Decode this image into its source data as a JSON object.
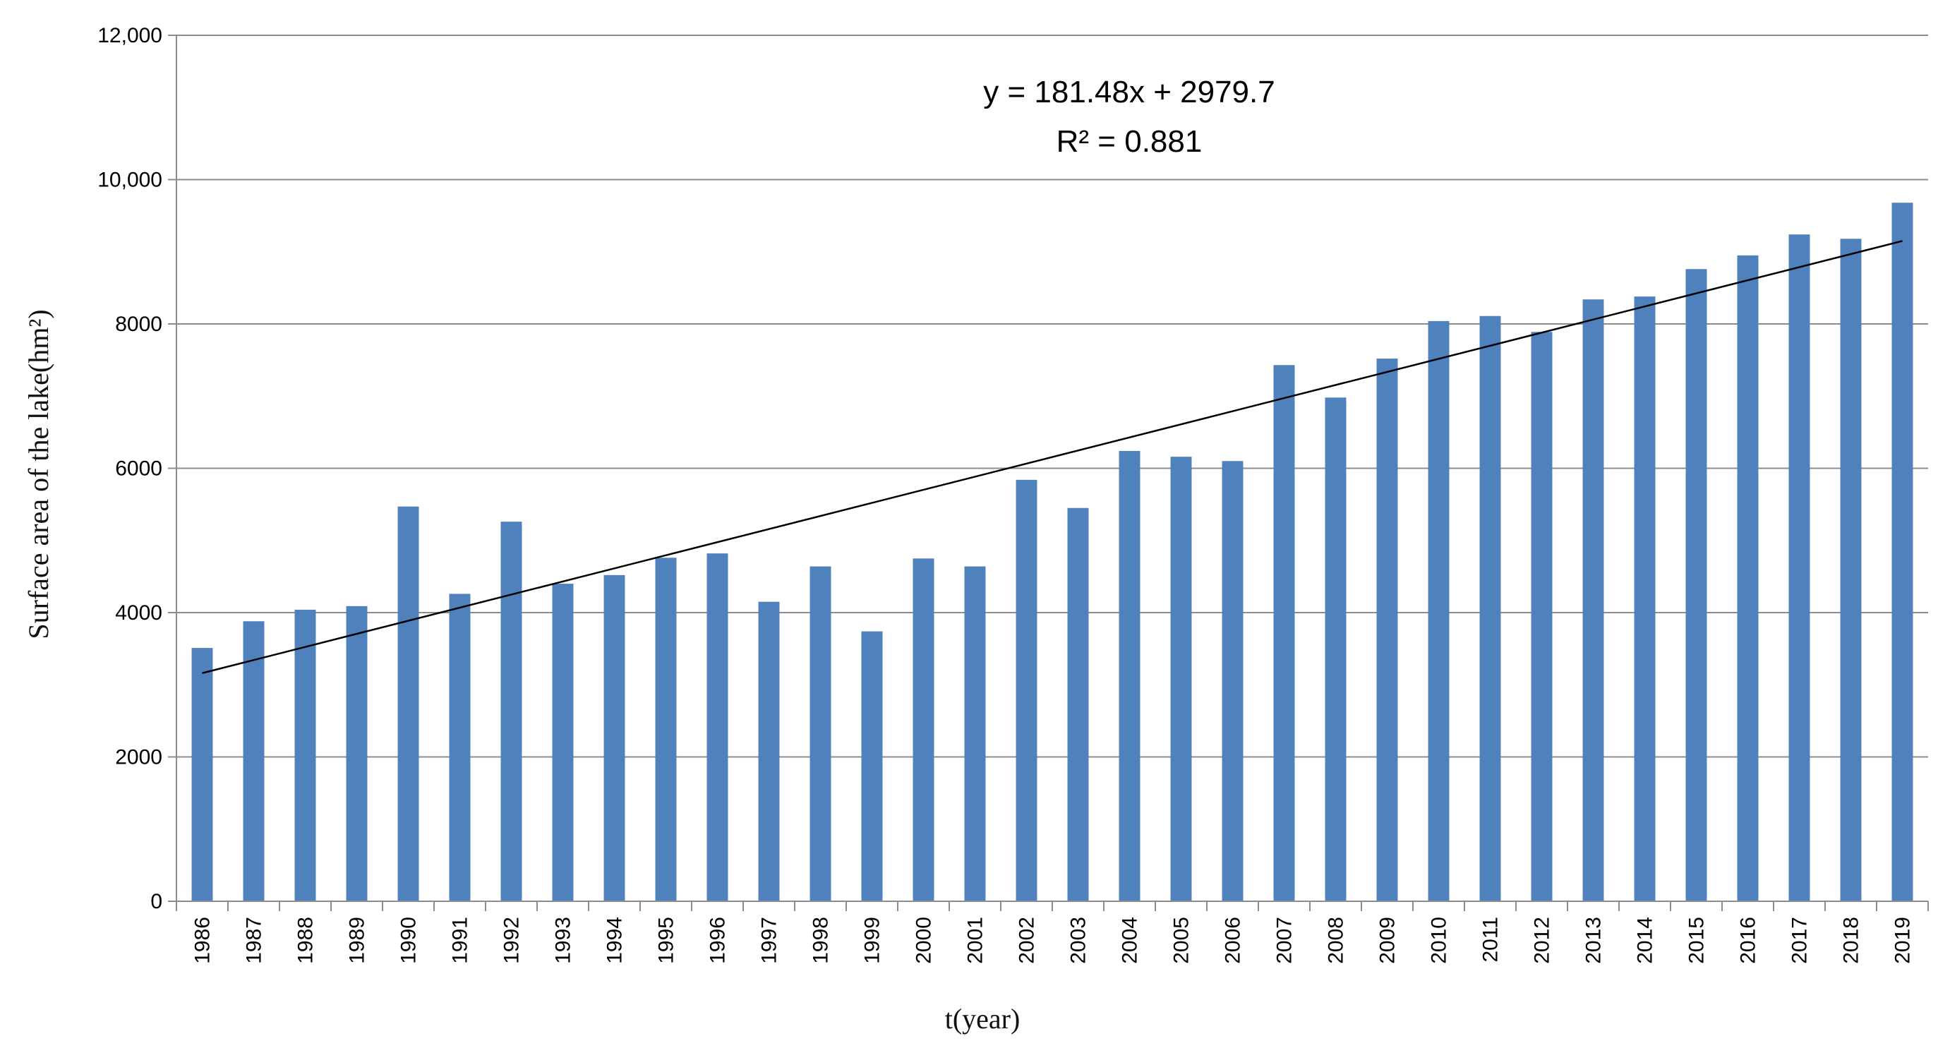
{
  "chart_data": {
    "type": "bar",
    "title": "",
    "xlabel": "t(year)",
    "ylabel": "Surface area of the lake(hm²)",
    "ylim": [
      0,
      12000
    ],
    "y_ticks": [
      0,
      2000,
      4000,
      6000,
      8000,
      10000,
      12000
    ],
    "y_tick_labels": [
      "0",
      "2000",
      "4000",
      "6000",
      "8000",
      "10,000",
      "12,000"
    ],
    "grid": true,
    "bar_color": "#4F81BD",
    "categories": [
      "1986",
      "1987",
      "1988",
      "1989",
      "1990",
      "1991",
      "1992",
      "1993",
      "1994",
      "1995",
      "1996",
      "1997",
      "1998",
      "1999",
      "2000",
      "2001",
      "2002",
      "2003",
      "2004",
      "2005",
      "2006",
      "2007",
      "2008",
      "2009",
      "2010",
      "2011",
      "2012",
      "2013",
      "2014",
      "2015",
      "2016",
      "2017",
      "2018",
      "2019"
    ],
    "values": [
      3510,
      3880,
      4040,
      4090,
      5470,
      4260,
      5260,
      4400,
      4520,
      4760,
      4820,
      4150,
      4640,
      3740,
      4750,
      4640,
      5840,
      5450,
      6240,
      6160,
      6100,
      7430,
      6980,
      7520,
      8040,
      8110,
      7890,
      8340,
      8380,
      8760,
      8950,
      9240,
      9180,
      9680
    ],
    "trendline": {
      "slope": 181.48,
      "intercept": 2979.7,
      "equation": "y = 181.48x + 2979.7",
      "r_squared": "R² = 0.881",
      "color": "#000000"
    }
  }
}
